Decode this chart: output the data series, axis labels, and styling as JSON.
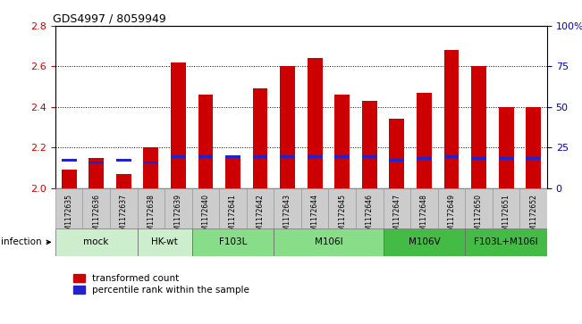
{
  "title": "GDS4997 / 8059949",
  "samples": [
    "GSM1172635",
    "GSM1172636",
    "GSM1172637",
    "GSM1172638",
    "GSM1172639",
    "GSM1172640",
    "GSM1172641",
    "GSM1172642",
    "GSM1172643",
    "GSM1172644",
    "GSM1172645",
    "GSM1172646",
    "GSM1172647",
    "GSM1172648",
    "GSM1172649",
    "GSM1172650",
    "GSM1172651",
    "GSM1172652"
  ],
  "red_values": [
    2.09,
    2.15,
    2.07,
    2.2,
    2.62,
    2.46,
    2.16,
    2.49,
    2.6,
    2.64,
    2.46,
    2.43,
    2.34,
    2.47,
    2.68,
    2.6,
    2.4,
    2.4
  ],
  "blue_values": [
    2.13,
    2.12,
    2.13,
    2.12,
    2.15,
    2.15,
    2.15,
    2.15,
    2.15,
    2.15,
    2.15,
    2.15,
    2.13,
    2.14,
    2.15,
    2.14,
    2.14,
    2.14
  ],
  "groups": [
    {
      "label": "mock",
      "start": 0,
      "end": 2,
      "color": "#cceecc"
    },
    {
      "label": "HK-wt",
      "start": 3,
      "end": 4,
      "color": "#cceecc"
    },
    {
      "label": "F103L",
      "start": 5,
      "end": 7,
      "color": "#88dd88"
    },
    {
      "label": "M106I",
      "start": 8,
      "end": 11,
      "color": "#88dd88"
    },
    {
      "label": "M106V",
      "start": 12,
      "end": 14,
      "color": "#44bb44"
    },
    {
      "label": "F103L+M106I",
      "start": 15,
      "end": 17,
      "color": "#44bb44"
    }
  ],
  "ylim": [
    2.0,
    2.8
  ],
  "yticks": [
    2.0,
    2.2,
    2.4,
    2.6,
    2.8
  ],
  "right_yticks": [
    0,
    25,
    50,
    75,
    100
  ],
  "bar_color": "#cc0000",
  "blue_color": "#2222cc",
  "sample_bg": "#cccccc",
  "xlabel_color": "#cc0000",
  "ylabel_right_color": "#0000bb",
  "bar_width": 0.55,
  "blue_bar_height": 0.012
}
